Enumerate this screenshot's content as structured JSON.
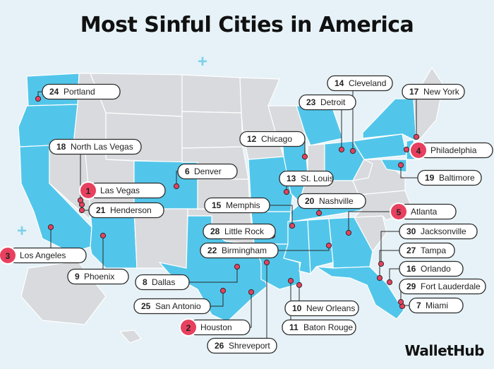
{
  "title": "Most Sinful Cities in America",
  "brand": "WalletHub",
  "colors": {
    "background": "#e6f2f7",
    "highlighted_state": "#52c6ea",
    "other_state": "#d8dadd",
    "state_border": "#ffffff",
    "marker": "#e8405f",
    "top5_badge": "#e8405f",
    "label_box": "#ffffff",
    "label_border": "#2b2b2b"
  },
  "cities": [
    {
      "rank": 1,
      "name": "Las Vegas",
      "top5": true
    },
    {
      "rank": 2,
      "name": "Houston",
      "top5": true
    },
    {
      "rank": 3,
      "name": "Los Angeles",
      "top5": true
    },
    {
      "rank": 4,
      "name": "Philadelphia",
      "top5": true
    },
    {
      "rank": 5,
      "name": "Atlanta",
      "top5": true
    },
    {
      "rank": 6,
      "name": "Denver",
      "top5": false
    },
    {
      "rank": 7,
      "name": "Miami",
      "top5": false
    },
    {
      "rank": 8,
      "name": "Dallas",
      "top5": false
    },
    {
      "rank": 9,
      "name": "Phoenix",
      "top5": false
    },
    {
      "rank": 10,
      "name": "New Orleans",
      "top5": false
    },
    {
      "rank": 11,
      "name": "Baton Rouge",
      "top5": false
    },
    {
      "rank": 12,
      "name": "Chicago",
      "top5": false
    },
    {
      "rank": 13,
      "name": "St. Louis",
      "top5": false
    },
    {
      "rank": 14,
      "name": "Cleveland",
      "top5": false
    },
    {
      "rank": 15,
      "name": "Memphis",
      "top5": false
    },
    {
      "rank": 16,
      "name": "Orlando",
      "top5": false
    },
    {
      "rank": 17,
      "name": "New York",
      "top5": false
    },
    {
      "rank": 18,
      "name": "North Las Vegas",
      "top5": false
    },
    {
      "rank": 19,
      "name": "Baltimore",
      "top5": false
    },
    {
      "rank": 20,
      "name": "Nashville",
      "top5": false
    },
    {
      "rank": 21,
      "name": "Henderson",
      "top5": false
    },
    {
      "rank": 22,
      "name": "Birmingham",
      "top5": false
    },
    {
      "rank": 23,
      "name": "Detroit",
      "top5": false
    },
    {
      "rank": 24,
      "name": "Portland",
      "top5": false
    },
    {
      "rank": 25,
      "name": "San Antonio",
      "top5": false
    },
    {
      "rank": 26,
      "name": "Shreveport",
      "top5": false
    },
    {
      "rank": 27,
      "name": "Tampa",
      "top5": false
    },
    {
      "rank": 28,
      "name": "Little Rock",
      "top5": false
    },
    {
      "rank": 29,
      "name": "Fort Lauderdale",
      "top5": false
    },
    {
      "rank": 30,
      "name": "Jacksonville",
      "top5": false
    }
  ]
}
